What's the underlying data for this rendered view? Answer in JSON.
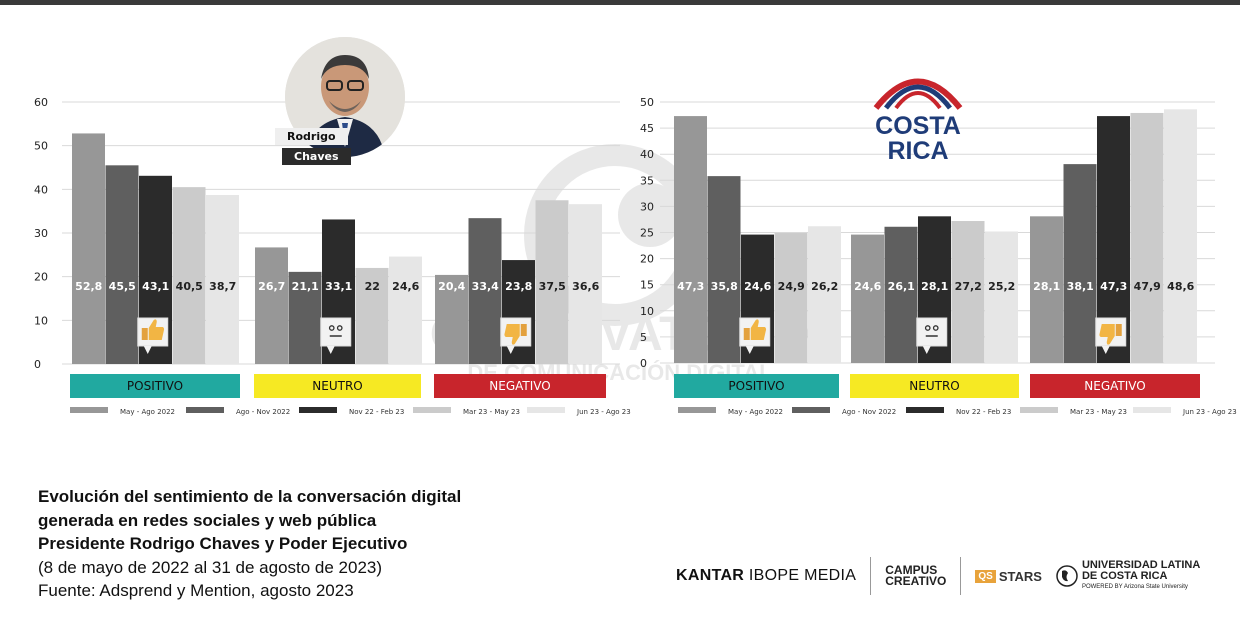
{
  "chart_data": [
    {
      "type": "bar",
      "title": "Rodrigo Chaves",
      "ylim": [
        0,
        60
      ],
      "yticks": [
        0,
        10,
        20,
        30,
        40,
        50,
        60
      ],
      "categories": [
        "POSITIVO",
        "NEUTRO",
        "NEGATIVO"
      ],
      "series": [
        {
          "name": "May - Ago 2022",
          "values": [
            52.8,
            26.7,
            20.4
          ],
          "labels": [
            "52,8",
            "26,7",
            "20,4"
          ]
        },
        {
          "name": "Ago - Nov 2022",
          "values": [
            45.5,
            21.1,
            33.4
          ],
          "labels": [
            "45,5",
            "21,1",
            "33,4"
          ]
        },
        {
          "name": "Nov 22 - Feb 23",
          "values": [
            43.1,
            33.1,
            23.8
          ],
          "labels": [
            "43,1",
            "33,1",
            "23,8"
          ]
        },
        {
          "name": "Mar 23 - May 23",
          "values": [
            40.5,
            22,
            37.5
          ],
          "labels": [
            "40,5",
            "22",
            "37,5"
          ]
        },
        {
          "name": "Jun 23 - Ago 23",
          "values": [
            38.7,
            24.6,
            36.6
          ],
          "labels": [
            "38,7",
            "24,6",
            "36,6"
          ]
        }
      ]
    },
    {
      "type": "bar",
      "title": "COSTA RICA",
      "ylim": [
        0,
        50
      ],
      "yticks": [
        0,
        5,
        10,
        15,
        20,
        25,
        30,
        35,
        40,
        45,
        50
      ],
      "categories": [
        "POSITIVO",
        "NEUTRO",
        "NEGATIVO"
      ],
      "series": [
        {
          "name": "May - Ago 2022",
          "values": [
            47.3,
            24.6,
            28.1
          ],
          "labels": [
            "47,3",
            "24,6",
            "28,1"
          ]
        },
        {
          "name": "Ago - Nov 2022",
          "values": [
            35.8,
            26.1,
            38.1
          ],
          "labels": [
            "35,8",
            "26,1",
            "38,1"
          ]
        },
        {
          "name": "Nov 22 - Feb 23",
          "values": [
            24.6,
            28.1,
            47.3
          ],
          "labels": [
            "24,6",
            "28,1",
            "47,3"
          ]
        },
        {
          "name": "Mar 23 - May 23",
          "values": [
            24.9,
            27.2,
            47.9
          ],
          "labels": [
            "24,9",
            "27,2",
            "47,9"
          ]
        },
        {
          "name": "Jun 23 - Ago 23",
          "values": [
            26.2,
            25.2,
            48.6
          ],
          "labels": [
            "26,2",
            "25,2",
            "48,6"
          ]
        }
      ]
    }
  ],
  "colors": {
    "series": [
      "#979797",
      "#5f5f5f",
      "#2b2b2b",
      "#cbcbcb",
      "#e6e6e6"
    ],
    "positivo": "#21a9a0",
    "neutro": "#f6e923",
    "negativo": "#c8252c",
    "brand_blue": "#1f3c78",
    "brand_red": "#c8252c"
  },
  "photo": {
    "name_line1": "Rodrigo",
    "name_line2": "Chaves"
  },
  "cr_logo": {
    "line1": "COSTA",
    "line2": "RICA"
  },
  "watermark": {
    "line1": "OBSERVATORIO",
    "line2": "DE COMUNICACIÓN DIGITAL"
  },
  "caption": {
    "bold_lines": [
      "Evolución del sentimiento de la conversación digital",
      "generada en redes sociales y web pública",
      "Presidente Rodrigo Chaves y Poder Ejecutivo"
    ],
    "lines": [
      "(8 de mayo de 2022 al 31 de agosto de 2023)",
      "Fuente: Adsprend y Mention, agosto 2023"
    ]
  },
  "logos": {
    "kantar_bold": "KANTAR",
    "kantar_rest": "IBOPE MEDIA",
    "campus_line1": "CAMPUS",
    "campus_line2": "CREATIVO",
    "qs_box": "QS",
    "qs_text": "STARS",
    "ulatina_line1": "UNIVERSIDAD LATINA",
    "ulatina_line2": "DE COSTA RICA",
    "ulatina_sub": "POWERED BY Arizona State University"
  },
  "icons": {
    "positive": "thumbs-up-icon",
    "neutral": "neutral-face-icon",
    "negative": "thumbs-down-icon"
  }
}
